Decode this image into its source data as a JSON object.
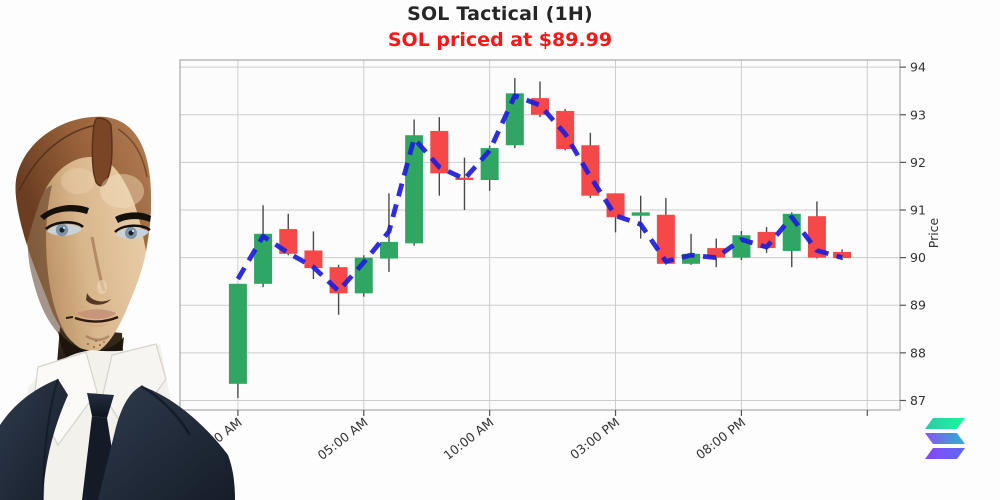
{
  "figure": {
    "title": "SOL Tactical (1H)",
    "subtitle": "SOL priced at $89.99",
    "title_color": "#262626",
    "subtitle_color": "#f91717"
  },
  "hero_image": {
    "alt": "humanoid robot bust wearing dark suit and tie"
  },
  "watermark": {
    "icon": "solana-logo",
    "colors": {
      "top_bar": [
        "#2FC7A8",
        "#19FB9B"
      ],
      "middle_bar": [
        "#8752F3",
        "#2BB5C8"
      ],
      "bottom_bar": [
        "#8A46FF",
        "#5B6CF0"
      ]
    }
  },
  "chart_data": {
    "type": "candlestick",
    "title": "SOL Tactical (1H)",
    "subtitle": "SOL priced at $89.99",
    "ylabel": "Price",
    "grid": true,
    "ylim": [
      86.8,
      94.15
    ],
    "xlim_hours": [
      -2.3,
      26.3
    ],
    "y_ticks": [
      87,
      88,
      89,
      90,
      91,
      92,
      93,
      94
    ],
    "x_ticks": [
      {
        "hour": 0,
        "label": "12:00 AM"
      },
      {
        "hour": 5,
        "label": "05:00 AM"
      },
      {
        "hour": 10,
        "label": "10:00 AM"
      },
      {
        "hour": 15,
        "label": "03:00 PM"
      },
      {
        "hour": 20,
        "label": "08:00 PM"
      },
      {
        "hour": 25,
        "label": ""
      }
    ],
    "up_color": "#2FA661",
    "down_color": "#F64848",
    "wick_color": "#4a4a4a",
    "ma_color": "#1E1EDC",
    "ma_style": "dashed",
    "last_price": 89.99,
    "candles": [
      {
        "t": "12:00 AM",
        "o": 87.35,
        "h": 89.45,
        "l": 87.05,
        "c": 89.45
      },
      {
        "t": "01:00 AM",
        "o": 89.45,
        "h": 91.1,
        "l": 89.38,
        "c": 90.5
      },
      {
        "t": "02:00 AM",
        "o": 90.6,
        "h": 90.92,
        "l": 90.05,
        "c": 90.08
      },
      {
        "t": "03:00 AM",
        "o": 90.15,
        "h": 90.55,
        "l": 89.55,
        "c": 89.78
      },
      {
        "t": "04:00 AM",
        "o": 89.8,
        "h": 89.85,
        "l": 88.8,
        "c": 89.25
      },
      {
        "t": "05:00 AM",
        "o": 89.25,
        "h": 90.05,
        "l": 89.18,
        "c": 90.0
      },
      {
        "t": "06:00 AM",
        "o": 89.98,
        "h": 91.35,
        "l": 89.7,
        "c": 90.33
      },
      {
        "t": "07:00 AM",
        "o": 90.3,
        "h": 92.9,
        "l": 90.25,
        "c": 92.57
      },
      {
        "t": "08:00 AM",
        "o": 92.66,
        "h": 92.95,
        "l": 91.3,
        "c": 91.77
      },
      {
        "t": "09:00 AM",
        "o": 91.68,
        "h": 92.1,
        "l": 91.0,
        "c": 91.63
      },
      {
        "t": "10:00 AM",
        "o": 91.63,
        "h": 92.35,
        "l": 91.4,
        "c": 92.3
      },
      {
        "t": "11:00 AM",
        "o": 92.36,
        "h": 93.77,
        "l": 92.3,
        "c": 93.45
      },
      {
        "t": "12:00 PM",
        "o": 93.35,
        "h": 93.7,
        "l": 92.95,
        "c": 93.0
      },
      {
        "t": "01:00 PM",
        "o": 93.08,
        "h": 93.12,
        "l": 92.25,
        "c": 92.28
      },
      {
        "t": "02:00 PM",
        "o": 92.36,
        "h": 92.62,
        "l": 91.25,
        "c": 91.3
      },
      {
        "t": "03:00 PM",
        "o": 91.35,
        "h": 91.35,
        "l": 90.53,
        "c": 90.85
      },
      {
        "t": "04:00 PM",
        "o": 90.88,
        "h": 91.3,
        "l": 90.4,
        "c": 90.95
      },
      {
        "t": "05:00 PM",
        "o": 90.9,
        "h": 91.25,
        "l": 89.85,
        "c": 89.87
      },
      {
        "t": "06:00 PM",
        "o": 89.87,
        "h": 90.5,
        "l": 89.85,
        "c": 90.08
      },
      {
        "t": "07:00 PM",
        "o": 90.2,
        "h": 90.4,
        "l": 89.8,
        "c": 90.0
      },
      {
        "t": "08:00 PM",
        "o": 90.0,
        "h": 90.56,
        "l": 89.95,
        "c": 90.47
      },
      {
        "t": "09:00 PM",
        "o": 90.54,
        "h": 90.64,
        "l": 90.1,
        "c": 90.2
      },
      {
        "t": "10:00 PM",
        "o": 90.14,
        "h": 90.95,
        "l": 89.8,
        "c": 90.92
      },
      {
        "t": "11:00 PM",
        "o": 90.87,
        "h": 91.18,
        "l": 89.98,
        "c": 90.0
      },
      {
        "t": "12:00 AM",
        "o": 90.12,
        "h": 90.17,
        "l": 89.95,
        "c": 89.99
      }
    ],
    "ma": [
      89.55,
      90.45,
      90.1,
      89.8,
      89.3,
      89.9,
      90.55,
      92.5,
      91.9,
      91.65,
      92.25,
      93.4,
      93.2,
      92.6,
      91.7,
      90.88,
      90.7,
      89.92,
      90.05,
      90.0,
      90.38,
      90.22,
      90.85,
      90.15,
      90.0
    ]
  }
}
